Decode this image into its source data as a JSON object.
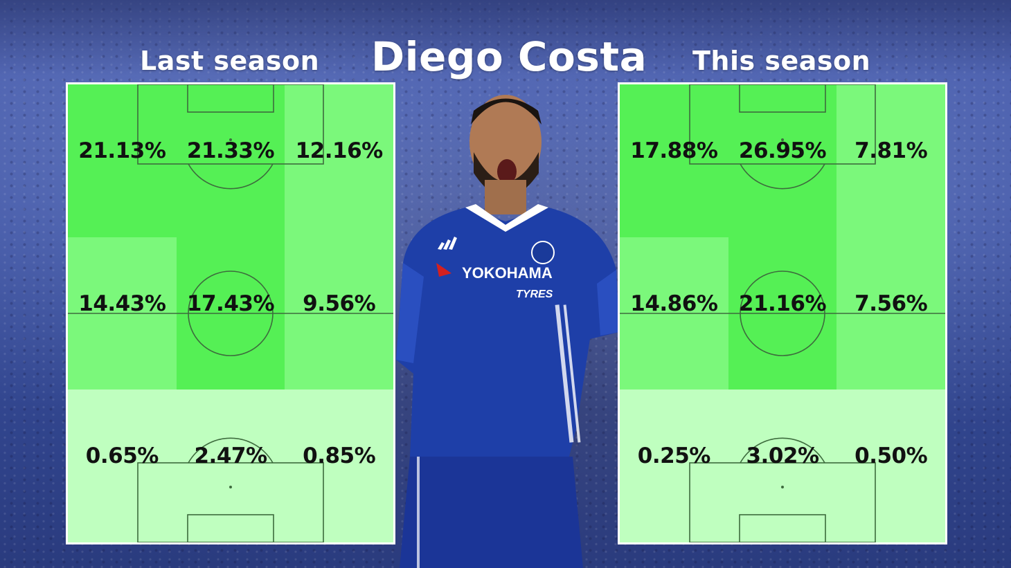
{
  "headings": {
    "left": "Last season",
    "title": "Diego Costa",
    "right": "This season"
  },
  "player": {
    "shirt_sponsor": "YOKOHAMA",
    "shirt_sponsor_sub": "TYRES",
    "kit_color": "#1e3fa8"
  },
  "colors": {
    "zone_high": "#55f055",
    "zone_mid": "#7bf87b",
    "zone_low": "#bfffbf",
    "line": "#3d6b3d"
  },
  "last_season": {
    "zones": [
      [
        "21.13%",
        "21.33%",
        "12.16%"
      ],
      [
        "14.43%",
        "17.43%",
        "9.56%"
      ],
      [
        "0.65%",
        "2.47%",
        "0.85%"
      ]
    ],
    "values": [
      [
        21.13,
        21.33,
        12.16
      ],
      [
        14.43,
        17.43,
        9.56
      ],
      [
        0.65,
        2.47,
        0.85
      ]
    ]
  },
  "this_season": {
    "zones": [
      [
        "17.88%",
        "26.95%",
        "7.81%"
      ],
      [
        "14.86%",
        "21.16%",
        "7.56%"
      ],
      [
        "0.25%",
        "3.02%",
        "0.50%"
      ]
    ],
    "values": [
      [
        17.88,
        26.95,
        7.81
      ],
      [
        14.86,
        21.16,
        7.56
      ],
      [
        0.25,
        3.02,
        0.5
      ]
    ]
  }
}
